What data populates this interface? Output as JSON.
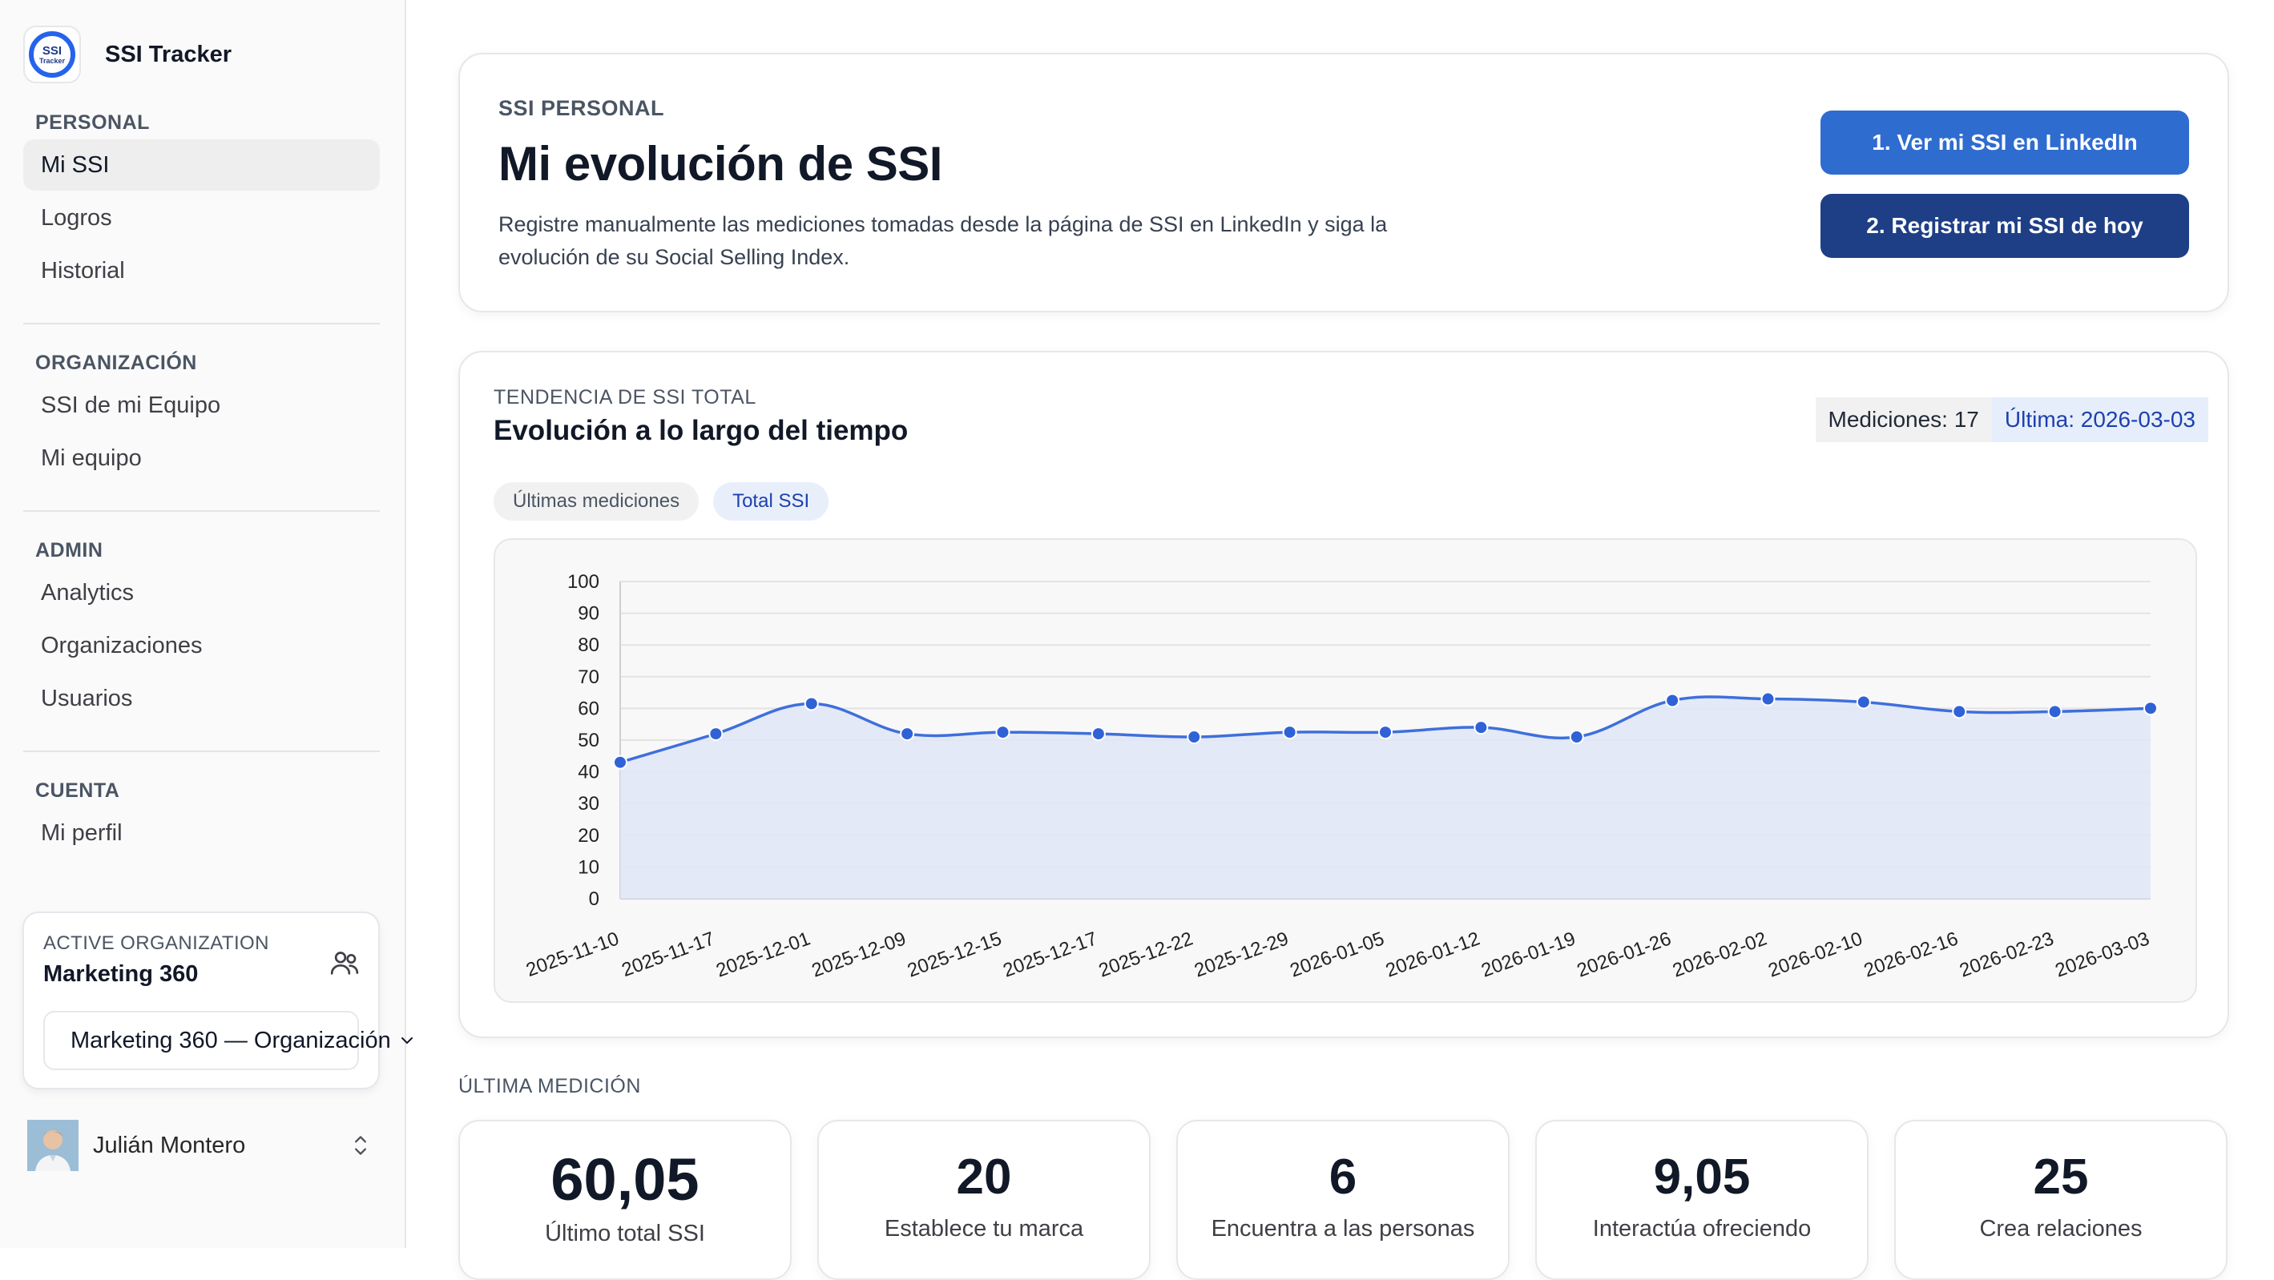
{
  "brand": {
    "logo_line1": "SSI",
    "logo_line2": "Tracker",
    "name": "SSI Tracker"
  },
  "sidebar": {
    "sections": [
      {
        "heading": "PERSONAL",
        "items": [
          {
            "label": "Mi SSI",
            "active": true
          },
          {
            "label": "Logros"
          },
          {
            "label": "Historial"
          }
        ]
      },
      {
        "heading": "ORGANIZACIÓN",
        "items": [
          {
            "label": "SSI de mi Equipo"
          },
          {
            "label": "Mi equipo"
          }
        ]
      },
      {
        "heading": "ADMIN",
        "items": [
          {
            "label": "Analytics"
          },
          {
            "label": "Organizaciones"
          },
          {
            "label": "Usuarios"
          }
        ]
      },
      {
        "heading": "CUENTA",
        "items": [
          {
            "label": "Mi perfil"
          }
        ]
      }
    ],
    "org": {
      "label": "ACTIVE ORGANIZATION",
      "name": "Marketing 360",
      "select_value": "Marketing 360 — Organización"
    },
    "user": {
      "name": "Julián Montero"
    }
  },
  "hero": {
    "eyebrow": "SSI PERSONAL",
    "title": "Mi evolución de SSI",
    "description": "Registre manualmente las mediciones tomadas desde la página de SSI en LinkedIn y siga la evolución de su Social Selling Index.",
    "btn_view": "1. Ver mi SSI en LinkedIn",
    "btn_register": "2. Registrar mi SSI de hoy"
  },
  "trend": {
    "eyebrow": "TENDENCIA DE SSI TOTAL",
    "title": "Evolución a lo largo del tiempo",
    "badge_count": "Mediciones: 17",
    "badge_last": "Última: 2026-03-03",
    "pills": [
      "Últimas mediciones",
      "Total SSI"
    ]
  },
  "chart_data": {
    "type": "area",
    "title": "",
    "xlabel": "",
    "ylabel": "",
    "ylim": [
      0,
      100
    ],
    "yticks": [
      0,
      10,
      20,
      30,
      40,
      50,
      60,
      70,
      80,
      90,
      100
    ],
    "grid": true,
    "x": [
      "2025-11-10",
      "2025-11-17",
      "2025-12-01",
      "2025-12-09",
      "2025-12-15",
      "2025-12-17",
      "2025-12-22",
      "2025-12-29",
      "2026-01-05",
      "2026-01-12",
      "2026-01-19",
      "2026-01-26",
      "2026-02-02",
      "2026-02-10",
      "2026-02-16",
      "2026-02-23",
      "2026-03-03"
    ],
    "series": [
      {
        "values": [
          43,
          52,
          61.5,
          52,
          52.5,
          52,
          51,
          52.5,
          52.5,
          54,
          51,
          62.5,
          63,
          62,
          59,
          59,
          60.05
        ]
      }
    ],
    "colors": {
      "line": "#3e6fdc",
      "fill": "#dfe6f7",
      "point": "#2f62d6"
    }
  },
  "latest": {
    "label": "ÚLTIMA MEDICIÓN",
    "metrics": [
      {
        "value": "60,05",
        "label": "Último total SSI"
      },
      {
        "value": "20",
        "label": "Establece tu marca"
      },
      {
        "value": "6",
        "label": "Encuentra a las personas"
      },
      {
        "value": "9,05",
        "label": "Interactúa ofreciendo"
      },
      {
        "value": "25",
        "label": "Crea relaciones"
      }
    ]
  }
}
